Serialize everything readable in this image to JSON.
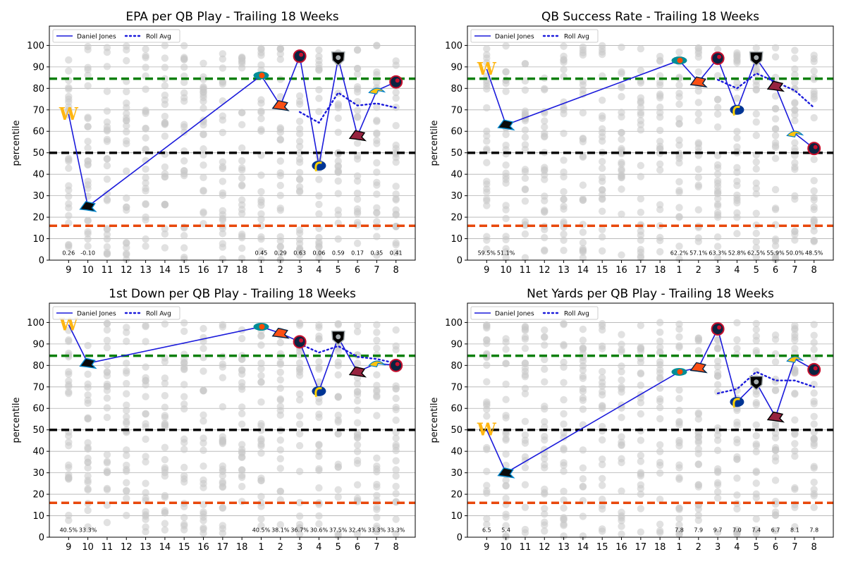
{
  "legend": {
    "player_label": "Daniel Jones",
    "avg_label": "Roll Avg"
  },
  "colors": {
    "player_line": "#1a1adb",
    "good_threshold": "#0a7f0a",
    "median_line": "#000000",
    "bad_threshold": "#e8480c",
    "background_points": "#c8c8c8"
  },
  "chart_data": [
    {
      "type": "line",
      "title": "EPA per QB Play - Trailing 18 Weeks",
      "xlabel": "",
      "ylabel": "percentile",
      "ylim": [
        0,
        109
      ],
      "yticks": [
        0,
        10,
        20,
        30,
        40,
        50,
        60,
        70,
        80,
        90,
        100
      ],
      "categories": [
        "9",
        "10",
        "11",
        "12",
        "13",
        "14",
        "15",
        "16",
        "17",
        "18",
        "1",
        "2",
        "3",
        "4",
        "5",
        "6",
        "7",
        "8"
      ],
      "reference_lines": {
        "good": 84.5,
        "median": 50,
        "bad": 16
      },
      "series": [
        {
          "name": "Daniel Jones",
          "values": [
            68,
            25,
            null,
            null,
            null,
            null,
            null,
            null,
            null,
            null,
            86,
            72,
            95,
            44,
            94,
            58,
            79,
            83
          ]
        },
        {
          "name": "Roll Avg",
          "values": [
            null,
            null,
            null,
            null,
            null,
            null,
            null,
            null,
            null,
            null,
            null,
            null,
            69,
            64,
            78,
            72,
            73,
            71
          ]
        }
      ],
      "opponents": [
        "WAS",
        "CAR",
        "",
        "",
        "",
        "",
        "",
        "",
        "",
        "",
        "MIA",
        "DEN",
        "TEN",
        "LAR",
        "LV",
        "ARI",
        "LAC",
        "TEN"
      ],
      "stat_labels": [
        "0.26",
        "-0.10",
        "",
        "",
        "",
        "",
        "",
        "",
        "",
        "",
        "0.45",
        "0.29",
        "0.63",
        "0.06",
        "0.59",
        "0.17",
        "0.35",
        "0.41"
      ]
    },
    {
      "type": "line",
      "title": "QB Success Rate - Trailing 18 Weeks",
      "xlabel": "",
      "ylabel": "percentile",
      "ylim": [
        0,
        109
      ],
      "yticks": [
        0,
        10,
        20,
        30,
        40,
        50,
        60,
        70,
        80,
        90,
        100
      ],
      "categories": [
        "9",
        "10",
        "11",
        "12",
        "13",
        "14",
        "15",
        "16",
        "17",
        "18",
        "1",
        "2",
        "3",
        "4",
        "5",
        "6",
        "7",
        "8"
      ],
      "reference_lines": {
        "good": 84.5,
        "median": 50,
        "bad": 16
      },
      "series": [
        {
          "name": "Daniel Jones",
          "values": [
            89,
            63,
            null,
            null,
            null,
            null,
            null,
            null,
            null,
            null,
            93,
            83,
            94,
            70,
            94,
            81,
            59,
            52
          ]
        },
        {
          "name": "Roll Avg",
          "values": [
            null,
            null,
            null,
            null,
            null,
            null,
            null,
            null,
            null,
            null,
            null,
            null,
            84,
            80,
            87,
            83,
            79,
            71
          ]
        }
      ],
      "opponents": [
        "WAS",
        "CAR",
        "",
        "",
        "",
        "",
        "",
        "",
        "",
        "",
        "MIA",
        "DEN",
        "TEN",
        "LAR",
        "LV",
        "ARI",
        "LAC",
        "TEN"
      ],
      "stat_labels": [
        "59.5%",
        "51.1%",
        "",
        "",
        "",
        "",
        "",
        "",
        "",
        "",
        "62.2%",
        "57.1%",
        "63.3%",
        "52.8%",
        "62.5%",
        "55.9%",
        "50.0%",
        "48.5%"
      ]
    },
    {
      "type": "line",
      "title": "1st Down per QB Play - Trailing 18 Weeks",
      "xlabel": "",
      "ylabel": "percentile",
      "ylim": [
        0,
        109
      ],
      "yticks": [
        0,
        10,
        20,
        30,
        40,
        50,
        60,
        70,
        80,
        90,
        100
      ],
      "categories": [
        "9",
        "10",
        "11",
        "12",
        "13",
        "14",
        "15",
        "16",
        "17",
        "18",
        "1",
        "2",
        "3",
        "4",
        "5",
        "6",
        "7",
        "8"
      ],
      "reference_lines": {
        "good": 84.5,
        "median": 50,
        "bad": 16
      },
      "series": [
        {
          "name": "Daniel Jones",
          "values": [
            99,
            81,
            null,
            null,
            null,
            null,
            null,
            null,
            null,
            null,
            98,
            95,
            91,
            68,
            93,
            77,
            81,
            80
          ]
        },
        {
          "name": "Roll Avg",
          "values": [
            null,
            null,
            null,
            null,
            null,
            null,
            null,
            null,
            null,
            null,
            null,
            null,
            90,
            86,
            89,
            84,
            83,
            81
          ]
        }
      ],
      "opponents": [
        "WAS",
        "CAR",
        "",
        "",
        "",
        "",
        "",
        "",
        "",
        "",
        "MIA",
        "DEN",
        "TEN",
        "LAR",
        "LV",
        "ARI",
        "LAC",
        "TEN"
      ],
      "stat_labels": [
        "40.5%",
        "33.3%",
        "",
        "",
        "",
        "",
        "",
        "",
        "",
        "",
        "40.5%",
        "38.1%",
        "36.7%",
        "30.6%",
        "37.5%",
        "32.4%",
        "33.3%",
        "33.3%"
      ]
    },
    {
      "type": "line",
      "title": "Net Yards per QB Play - Trailing 18 Weeks",
      "xlabel": "",
      "ylabel": "percentile",
      "ylim": [
        0,
        109
      ],
      "yticks": [
        0,
        10,
        20,
        30,
        40,
        50,
        60,
        70,
        80,
        90,
        100
      ],
      "categories": [
        "9",
        "10",
        "11",
        "12",
        "13",
        "14",
        "15",
        "16",
        "17",
        "18",
        "1",
        "2",
        "3",
        "4",
        "5",
        "6",
        "7",
        "8"
      ],
      "reference_lines": {
        "good": 84.5,
        "median": 50,
        "bad": 16
      },
      "series": [
        {
          "name": "Daniel Jones",
          "values": [
            50,
            30,
            null,
            null,
            null,
            null,
            null,
            null,
            null,
            null,
            77,
            79,
            97,
            63,
            72,
            56,
            83,
            78
          ]
        },
        {
          "name": "Roll Avg",
          "values": [
            null,
            null,
            null,
            null,
            null,
            null,
            null,
            null,
            null,
            null,
            null,
            null,
            67,
            69,
            77,
            73,
            73,
            70
          ]
        }
      ],
      "opponents": [
        "WAS",
        "CAR",
        "",
        "",
        "",
        "",
        "",
        "",
        "",
        "",
        "MIA",
        "DEN",
        "TEN",
        "LAR",
        "LV",
        "ARI",
        "LAC",
        "TEN"
      ],
      "stat_labels": [
        "6.5",
        "5.4",
        "",
        "",
        "",
        "",
        "",
        "",
        "",
        "",
        "7.8",
        "7.9",
        "9.7",
        "7.0",
        "7.4",
        "6.7",
        "8.1",
        "7.8"
      ]
    }
  ]
}
